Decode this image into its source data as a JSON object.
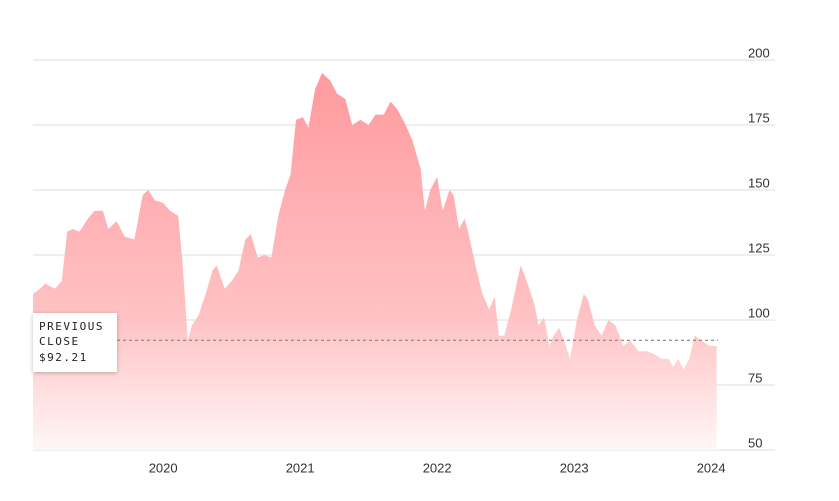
{
  "chart_data": {
    "type": "area",
    "color": "#ff9a9e",
    "x": [
      2019.05,
      2019.1,
      2019.14,
      2019.21,
      2019.26,
      2019.3,
      2019.34,
      2019.39,
      2019.45,
      2019.5,
      2019.56,
      2019.6,
      2019.66,
      2019.72,
      2019.79,
      2019.85,
      2019.89,
      2019.94,
      2020.0,
      2020.05,
      2020.11,
      2020.14,
      2020.16,
      2020.18,
      2020.21,
      2020.26,
      2020.31,
      2020.36,
      2020.39,
      2020.45,
      2020.5,
      2020.55,
      2020.6,
      2020.64,
      2020.69,
      2020.74,
      2020.79,
      2020.84,
      2020.89,
      2020.93,
      2020.97,
      2021.02,
      2021.06,
      2021.11,
      2021.16,
      2021.22,
      2021.27,
      2021.33,
      2021.38,
      2021.44,
      2021.5,
      2021.55,
      2021.61,
      2021.66,
      2021.71,
      2021.77,
      2021.82,
      2021.88,
      2021.91,
      2021.95,
      2022.0,
      2022.04,
      2022.09,
      2022.12,
      2022.16,
      2022.2,
      2022.23,
      2022.28,
      2022.33,
      2022.38,
      2022.42,
      2022.45,
      2022.49,
      2022.54,
      2022.58,
      2022.61,
      2022.66,
      2022.71,
      2022.74,
      2022.78,
      2022.82,
      2022.85,
      2022.89,
      2022.94,
      2022.97,
      2023.02,
      2023.07,
      2023.1,
      2023.15,
      2023.2,
      2023.25,
      2023.3,
      2023.36,
      2023.41,
      2023.47,
      2023.53,
      2023.58,
      2023.64,
      2023.69,
      2023.72,
      2023.76,
      2023.8,
      2023.84,
      2023.88,
      2023.93,
      2023.99,
      2024.04
    ],
    "values": [
      110,
      112,
      114,
      112,
      115,
      134,
      135,
      134,
      139,
      142,
      142,
      135,
      138,
      132,
      131,
      148,
      150,
      146,
      145,
      142,
      140,
      123,
      108,
      92,
      98,
      102,
      110,
      119,
      121,
      112,
      115,
      119,
      131,
      133,
      124,
      125,
      124,
      140,
      150,
      156,
      177,
      178,
      174,
      189,
      195,
      192,
      187,
      185,
      175,
      177,
      175,
      179,
      179,
      184,
      181,
      175,
      169,
      158,
      142,
      150,
      155,
      142,
      150,
      148,
      135,
      139,
      133,
      121,
      110,
      104,
      109,
      94,
      94,
      104,
      114,
      121,
      114,
      106,
      98,
      101,
      90,
      94,
      97,
      90,
      85,
      100,
      110,
      108,
      98,
      94,
      100,
      98,
      90,
      92,
      88,
      88,
      87,
      85,
      85,
      82,
      85,
      81,
      85,
      94,
      92,
      90,
      90
    ],
    "xlim": [
      2019.05,
      2024.05
    ],
    "xticks": [
      2020,
      2021,
      2022,
      2023,
      2024
    ],
    "ylim": [
      50,
      200
    ],
    "yticks": [
      50,
      75,
      100,
      125,
      150,
      175,
      200
    ],
    "grid": true,
    "previous_close": {
      "label": "PREVIOUS CLOSE",
      "value": 92.21,
      "value_label": "$92.21"
    }
  }
}
